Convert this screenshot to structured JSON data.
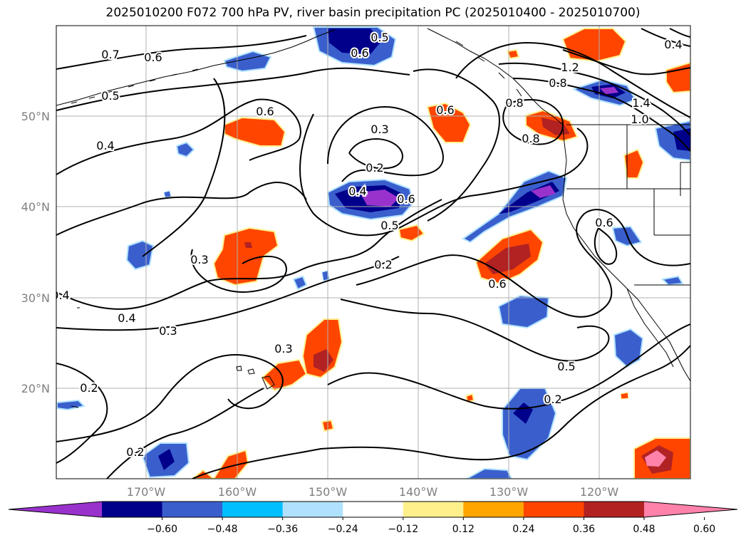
{
  "title": "2025010200 F072 700 hPa PV, river basin precipitation PC (2025010400 - 2025010700)",
  "lat_labels": [
    "50°N",
    "40°N",
    "30°N",
    "20°N"
  ],
  "lon_labels": [
    "170°W",
    "160°W",
    "150°W",
    "140°W",
    "130°W",
    "120°W"
  ],
  "colorbar": {
    "colors": [
      "#9932cc",
      "#00008b",
      "#3a5fcd",
      "#00bfff",
      "#b0e2ff",
      "#ffffff",
      "#fff08c",
      "#ffa500",
      "#ff4500",
      "#b22222",
      "#ff82ab"
    ],
    "tick_labels": [
      "−0.60",
      "−0.48",
      "−0.36",
      "−0.24",
      "−0.12",
      "0.12",
      "0.24",
      "0.36",
      "0.48",
      "0.60"
    ]
  },
  "contour_labels": [
    "0.7",
    "0.6",
    "0.5",
    "0.4",
    "0.6",
    "0.3",
    "0.2",
    "0.4",
    "0.6",
    "0.5",
    "0.2",
    "0.6",
    "0.6",
    "0.3",
    "0.4",
    "0.4",
    "0.3",
    "0.3",
    "0.2",
    "0.2",
    "0.5",
    "0.6",
    "0.8",
    "1.2",
    "0.8",
    "1.4",
    "1.0",
    "0.8",
    "0.6",
    "0.5",
    "0.2",
    "0.4"
  ]
}
